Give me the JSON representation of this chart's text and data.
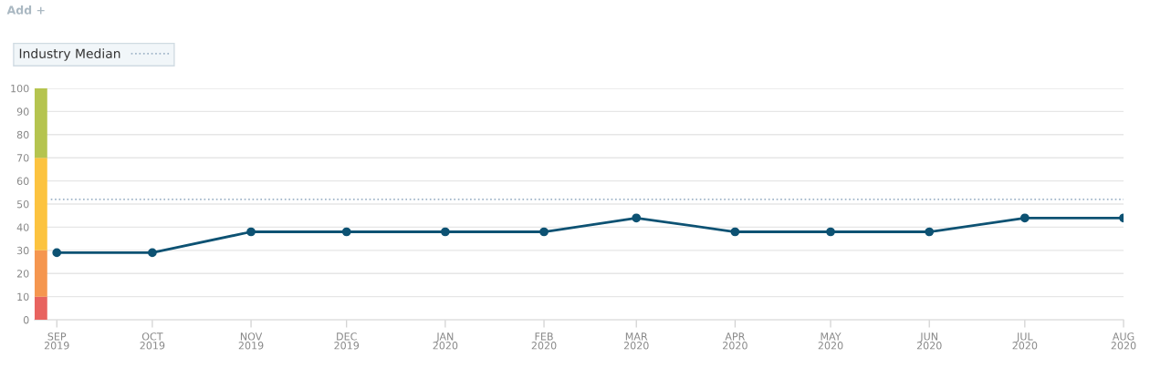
{
  "chart_data": {
    "type": "line",
    "annotations": [
      "Add +"
    ],
    "x": [
      "2019-09",
      "2019-10",
      "2019-11",
      "2019-12",
      "2020-01",
      "2020-02",
      "2020-03",
      "2020-04",
      "2020-05",
      "2020-06",
      "2020-07",
      "2020-08"
    ],
    "series": [
      {
        "color": "#0d5273",
        "values": [
          29,
          29,
          38,
          38,
          38,
          38,
          44,
          38,
          38,
          38,
          44,
          44
        ]
      },
      {
        "type": "bar",
        "x": [
          "2019-08-27"
        ],
        "color": "#e8635f",
        "values": [
          10
        ]
      },
      {
        "type": "bar",
        "x": [
          "2019-08-27"
        ],
        "color": "#f5964f",
        "values": [
          20
        ]
      },
      {
        "type": "bar",
        "x": [
          "2019-08-27"
        ],
        "color": "#fcc33f",
        "values": [
          40
        ]
      },
      {
        "type": "bar",
        "x": [
          "2019-08-27"
        ],
        "color": "#b5c44f",
        "values": [
          30
        ]
      }
    ],
    "stacked": true,
    "xlim": [
      "2019-08-25",
      "2020-08-01"
    ],
    "xticks": [
      {
        "value": "2019-09",
        "label": "SEP\n2019"
      },
      {
        "value": "2019-10",
        "label": "OCT\n2019"
      },
      {
        "value": "2019-11",
        "label": "NOV\n2019"
      },
      {
        "value": "2019-12",
        "label": "DEC\n2019"
      },
      {
        "value": "2020-01",
        "label": "JAN\n2020"
      },
      {
        "value": "2020-02",
        "label": "FEB\n2020"
      },
      {
        "value": "2020-03",
        "label": "MAR\n2020"
      },
      {
        "value": "2020-04",
        "label": "APR\n2020"
      },
      {
        "value": "2020-05",
        "label": "MAY\n2020"
      },
      {
        "value": "2020-06",
        "label": "JUN\n2020"
      },
      {
        "value": "2020-07",
        "label": "JUL\n2020"
      },
      {
        "value": "2020-08",
        "label": "AUG\n2020"
      }
    ],
    "ylim": [
      0,
      100
    ],
    "yticks": [
      0,
      10,
      20,
      30,
      40,
      50,
      60,
      70,
      80,
      90,
      100
    ],
    "ref_lines": [
      {
        "axis": "y",
        "value": 52,
        "label": "Industry Median",
        "color": "#9fb4c8",
        "line_style": "dotted"
      }
    ],
    "grid": "y",
    "legend": "top left",
    "marker": "circle",
    "line_style": "solid"
  }
}
